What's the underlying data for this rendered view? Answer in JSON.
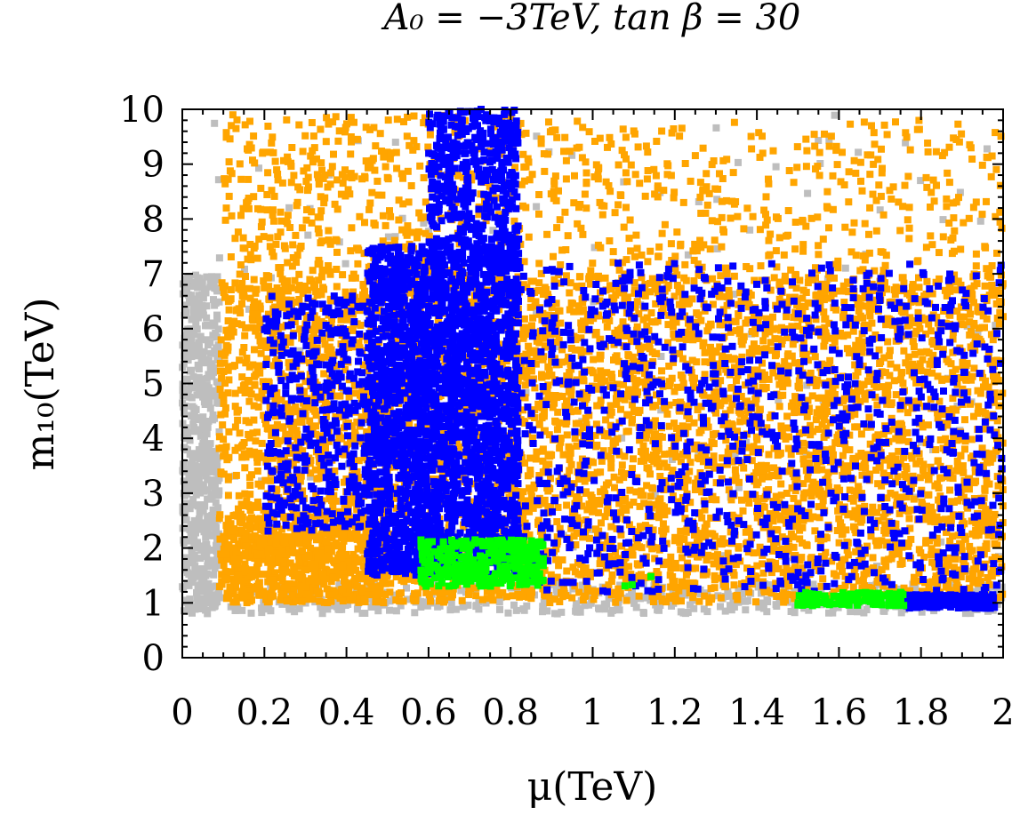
{
  "chart_data": {
    "type": "scatter",
    "title": "A₀ = −3TeV, tan β = 30",
    "xlabel": "μ(TeV)",
    "ylabel": "m₁₀(TeV)",
    "xlim": [
      0,
      2
    ],
    "ylim": [
      0,
      10
    ],
    "xticks": [
      0,
      0.2,
      0.4,
      0.6,
      0.8,
      1,
      1.2,
      1.4,
      1.6,
      1.8,
      2
    ],
    "xtick_labels": [
      "0",
      "0.2",
      "0.4",
      "0.6",
      "0.8",
      "1",
      "1.2",
      "1.4",
      "1.6",
      "1.8",
      "2"
    ],
    "yticks": [
      0,
      1,
      2,
      3,
      4,
      5,
      6,
      7,
      8,
      9,
      10
    ],
    "ytick_labels": [
      "0",
      "1",
      "2",
      "3",
      "4",
      "5",
      "6",
      "7",
      "8",
      "9",
      "10"
    ],
    "grid": false,
    "legend": "none",
    "series": [
      {
        "name": "gray",
        "color": "#bebebe",
        "regions": [
          {
            "x": [
              0.0,
              0.09
            ],
            "y": [
              0.9,
              7.0
            ],
            "count": 550
          },
          {
            "x": [
              0.0,
              2.0
            ],
            "y": [
              0.8,
              1.35
            ],
            "count": 500
          },
          {
            "x": [
              0.05,
              2.0
            ],
            "y": [
              1.2,
              9.9
            ],
            "count": 160
          }
        ]
      },
      {
        "name": "orange",
        "color": "#ffa500",
        "regions": [
          {
            "x": [
              0.09,
              2.0
            ],
            "y": [
              1.0,
              7.0
            ],
            "count": 5200
          },
          {
            "x": [
              0.1,
              0.85
            ],
            "y": [
              7.0,
              9.9
            ],
            "count": 450
          },
          {
            "x": [
              0.85,
              2.0
            ],
            "y": [
              7.0,
              9.8
            ],
            "count": 420
          },
          {
            "x": [
              0.1,
              0.5
            ],
            "y": [
              1.0,
              2.6
            ],
            "count": 500
          }
        ]
      },
      {
        "name": "blue",
        "color": "#0000ff",
        "regions": [
          {
            "x": [
              0.45,
              0.82
            ],
            "y": [
              1.5,
              7.5
            ],
            "count": 2600
          },
          {
            "x": [
              0.6,
              0.82
            ],
            "y": [
              7.5,
              10.0
            ],
            "count": 420
          },
          {
            "x": [
              0.2,
              0.45
            ],
            "y": [
              2.3,
              6.6
            ],
            "count": 380
          },
          {
            "x": [
              0.82,
              2.0
            ],
            "y": [
              1.2,
              7.2
            ],
            "count": 950
          },
          {
            "x": [
              1.76,
              1.98
            ],
            "y": [
              0.9,
              1.15
            ],
            "count": 230
          }
        ]
      },
      {
        "name": "green",
        "color": "#00ff00",
        "regions": [
          {
            "x": [
              0.58,
              0.88
            ],
            "y": [
              1.3,
              2.15
            ],
            "count": 320
          },
          {
            "x": [
              1.5,
              1.76
            ],
            "y": [
              0.95,
              1.2
            ],
            "count": 110
          },
          {
            "x": [
              1.0,
              1.17
            ],
            "y": [
              1.3,
              1.6
            ],
            "count": 3
          }
        ]
      }
    ]
  }
}
